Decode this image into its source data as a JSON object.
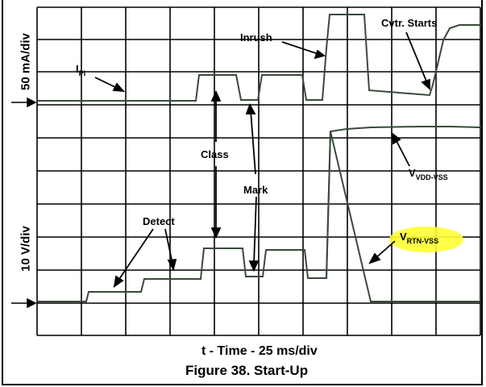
{
  "figure": {
    "caption": "Figure 38. Start-Up",
    "x_axis_label": "t - Time - 25 ms/div",
    "y_axis_top_label": "50 mA/div",
    "y_axis_bottom_label": "10 V/div",
    "highlight_color": "#ffff33",
    "trace_color": "#3a4a3a",
    "annotations": {
      "ipi_main": "I",
      "ipi_sub": "PI",
      "inrush": "Inrush",
      "cvtr_starts": "Cvtr. Starts",
      "class": "Class",
      "mark": "Mark",
      "detect": "Detect",
      "vdd_main": "V",
      "vdd_sub": "VDD-VSS",
      "rtn_main": "V",
      "rtn_sub": "RTN-VSS"
    }
  }
}
